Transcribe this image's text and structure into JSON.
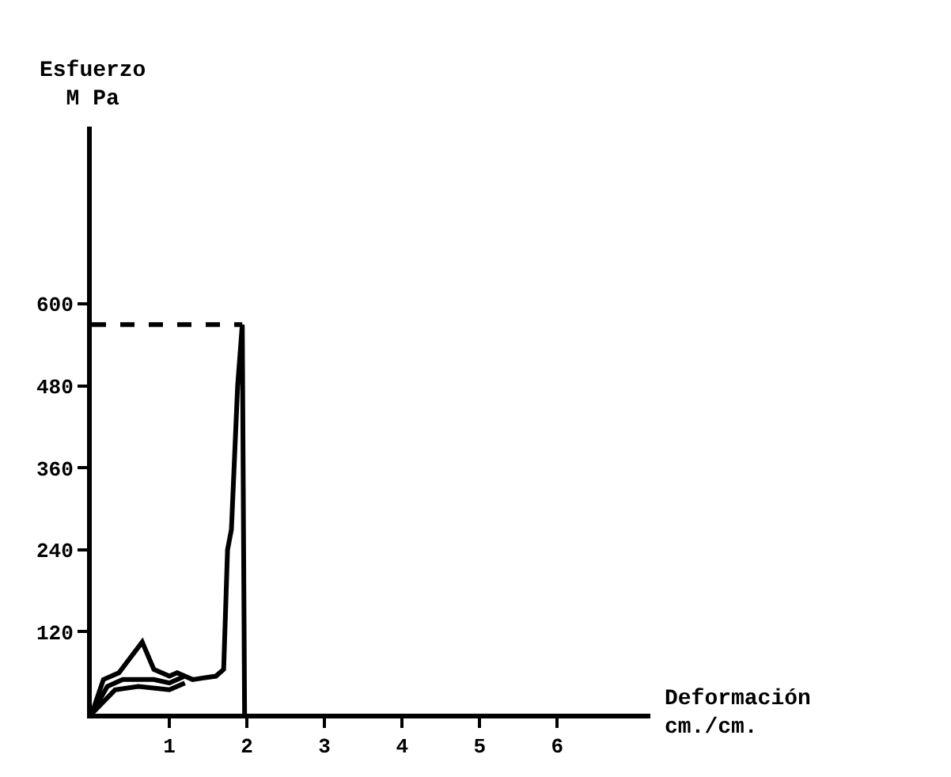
{
  "chart_data": {
    "type": "line",
    "xlabel": "Deformación\ncm./cm.",
    "ylabel": "Esfuerzo\nM Pa",
    "series": [
      {
        "color": "#000000",
        "x": [
          0,
          0.15,
          0.35,
          0.65,
          0.8,
          1.0,
          1.1,
          1.3,
          1.6,
          1.7,
          1.75,
          1.8,
          1.88,
          1.94,
          1.97
        ],
        "values": [
          0,
          50,
          60,
          105,
          65,
          55,
          60,
          50,
          55,
          65,
          240,
          270,
          480,
          570,
          0
        ]
      },
      {
        "color": "#000000",
        "x": [
          0,
          0.2,
          0.4,
          0.8,
          1.0,
          1.2
        ],
        "values": [
          0,
          40,
          50,
          50,
          45,
          55
        ]
      },
      {
        "color": "#000000",
        "x": [
          0,
          0.3,
          0.6,
          1.0,
          1.2
        ],
        "values": [
          0,
          35,
          40,
          35,
          45
        ]
      },
      {
        "color": "#000000",
        "x": [
          0,
          1.94
        ],
        "values": [
          570,
          570
        ],
        "line_style": "dashed"
      }
    ],
    "xlim": [
      0,
      7.2
    ],
    "ylim": [
      0,
      860
    ],
    "xticks": [
      1,
      2,
      3,
      4,
      5,
      6
    ],
    "yticks": [
      120,
      240,
      360,
      480,
      600
    ],
    "marker": "none"
  }
}
